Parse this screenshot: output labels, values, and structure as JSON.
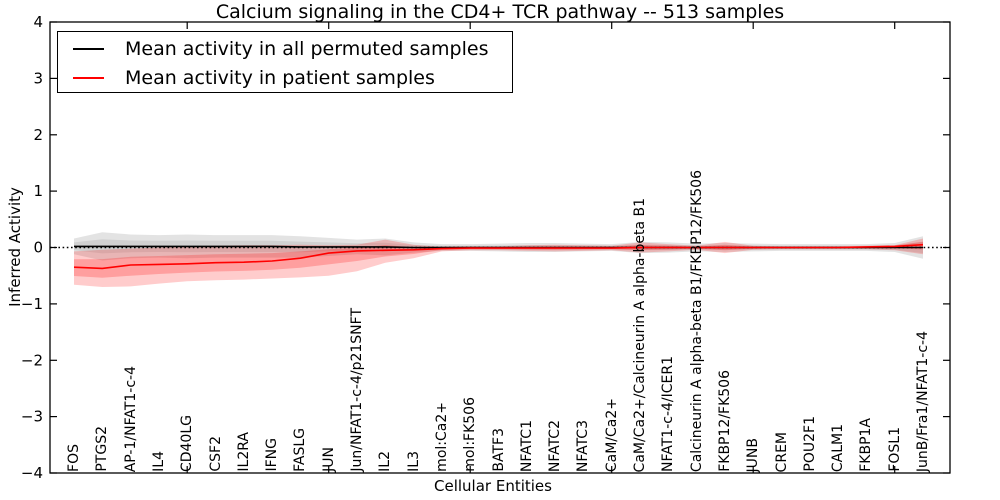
{
  "title": "Calcium signaling in the CD4+ TCR pathway -- 513 samples",
  "legend": {
    "entries": [
      {
        "label": "Mean activity in all permuted samples",
        "color": "#000000"
      },
      {
        "label": "Mean activity in patient samples",
        "color": "#ff0000"
      }
    ],
    "position": "upper left"
  },
  "chart_data": {
    "type": "line",
    "title": "Calcium signaling in the CD4+ TCR pathway -- 513 samples",
    "xlabel": "Cellular Entities",
    "ylabel": "Inferred Activity",
    "ylim": [
      -4,
      4
    ],
    "yticks": [
      -4,
      -3,
      -2,
      -1,
      0,
      1,
      2,
      3,
      4
    ],
    "x_tick_indices": [
      4,
      9,
      14,
      19,
      24,
      29
    ],
    "grid": false,
    "zero_reference_line": 0,
    "legend_position": "upper left",
    "categories": [
      "FOS",
      "PTGS2",
      "AP-1/NFAT1-c-4",
      "IL4",
      "CD40LG",
      "CSF2",
      "IL2RA",
      "IFNG",
      "FASLG",
      "JUN",
      "Jun/NFAT1-c-4/p21SNFT",
      "IL2",
      "IL3",
      "mol:Ca2+",
      "mol:FK506",
      "BATF3",
      "NFATC1",
      "NFATC2",
      "NFATC3",
      "CaM/Ca2+",
      "CaM/Ca2+/Calcineurin A alpha-beta B1",
      "NFAT1-c-4/ICER1",
      "Calcineurin A alpha-beta B1/FKBP12/FK506",
      "FKBP12/FK506",
      "JUNB",
      "CREM",
      "POU2F1",
      "CALM1",
      "FKBP1A",
      "FOSL1",
      "JunB/Fra1/NFAT1-c-4"
    ],
    "series": [
      {
        "name": "Mean activity in all permuted samples",
        "color": "#000000",
        "values": [
          0.02,
          0.02,
          0.02,
          0.02,
          0.02,
          0.02,
          0.02,
          0.02,
          0.01,
          0.01,
          0.01,
          0.01,
          0.0,
          0.0,
          0.0,
          0.0,
          0.0,
          0.0,
          0.0,
          0.0,
          0.0,
          0.0,
          0.0,
          0.0,
          0.0,
          0.0,
          0.0,
          0.0,
          0.0,
          0.0,
          0.0
        ],
        "band_halfwidth": [
          0.14,
          0.25,
          0.21,
          0.2,
          0.21,
          0.2,
          0.2,
          0.2,
          0.19,
          0.16,
          0.13,
          0.15,
          0.09,
          0.06,
          0.06,
          0.07,
          0.08,
          0.08,
          0.07,
          0.06,
          0.1,
          0.09,
          0.07,
          0.08,
          0.07,
          0.06,
          0.06,
          0.06,
          0.06,
          0.08,
          0.2
        ],
        "band_color": "#000000"
      },
      {
        "name": "Mean activity in patient samples",
        "color": "#ff0000",
        "values": [
          -0.35,
          -0.37,
          -0.31,
          -0.3,
          -0.29,
          -0.27,
          -0.26,
          -0.24,
          -0.19,
          -0.1,
          -0.06,
          -0.05,
          -0.04,
          -0.02,
          -0.01,
          -0.01,
          -0.01,
          -0.01,
          -0.01,
          -0.01,
          0.0,
          0.0,
          0.0,
          0.0,
          0.0,
          0.0,
          0.0,
          0.0,
          0.01,
          0.02,
          0.05
        ],
        "band_upper": [
          -0.07,
          -0.04,
          -0.02,
          0.0,
          0.02,
          0.03,
          0.04,
          0.04,
          0.05,
          0.04,
          0.05,
          0.14,
          0.05,
          0.01,
          0.02,
          0.02,
          0.04,
          0.05,
          0.04,
          0.03,
          0.09,
          0.06,
          0.03,
          0.1,
          0.03,
          0.02,
          0.02,
          0.02,
          0.03,
          0.04,
          0.16
        ],
        "band_lower": [
          -0.66,
          -0.7,
          -0.69,
          -0.64,
          -0.6,
          -0.58,
          -0.57,
          -0.55,
          -0.53,
          -0.5,
          -0.42,
          -0.27,
          -0.19,
          -0.07,
          -0.05,
          -0.05,
          -0.06,
          -0.07,
          -0.06,
          -0.05,
          -0.09,
          -0.07,
          -0.04,
          -0.1,
          -0.04,
          -0.03,
          -0.03,
          -0.03,
          -0.03,
          -0.05,
          -0.12
        ],
        "band_color": "#ff0000"
      }
    ]
  }
}
